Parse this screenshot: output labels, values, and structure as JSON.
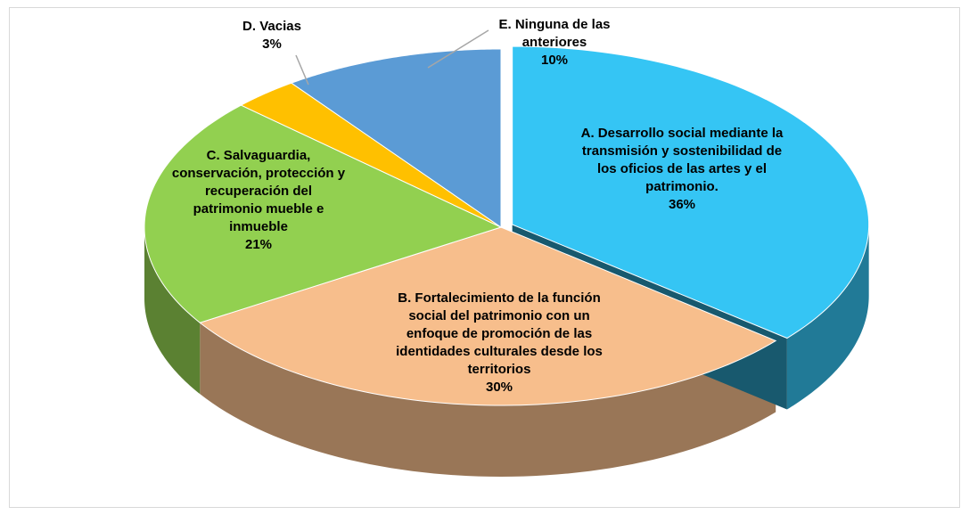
{
  "chart_data": {
    "type": "pie3d",
    "categories": [
      "A. Desarrollo social mediante la transmisión y sostenibilidad de los oficios de las artes y el patrimonio.",
      "B. Fortalecimiento de la función social del patrimonio con un enfoque de promoción de las identidades culturales desde los territorios",
      "C. Salvaguardia, conservación, protección y recuperación del patrimonio mueble e inmueble",
      "D. Vacias",
      "E. Ninguna de las anteriores"
    ],
    "values": [
      36,
      30,
      21,
      3,
      10
    ],
    "value_labels": [
      "36%",
      "30%",
      "21%",
      "3%",
      "10%"
    ],
    "colors": [
      "#35c5f4",
      "#f7be8c",
      "#92d050",
      "#ffc000",
      "#5b9bd5"
    ]
  }
}
